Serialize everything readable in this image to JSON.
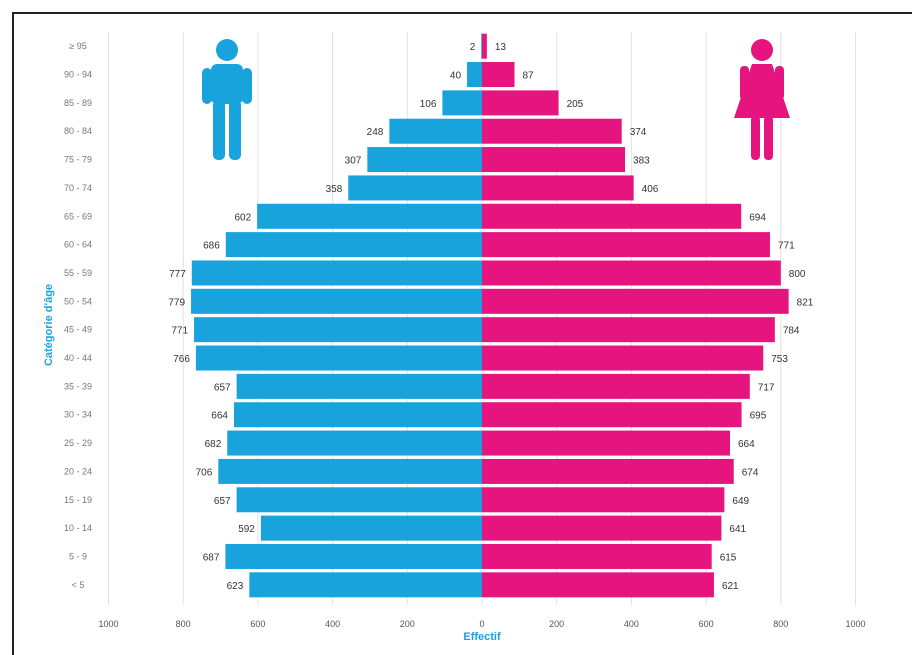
{
  "chart_data": {
    "type": "bar",
    "orientation": "horizontal-pyramid",
    "categories": [
      "< 5",
      "5 - 9",
      "10 - 14",
      "15 - 19",
      "20 - 24",
      "25 - 29",
      "30 - 34",
      "35 - 39",
      "40 - 44",
      "45 - 49",
      "50 - 54",
      "55 - 59",
      "60 - 64",
      "65 - 69",
      "70 - 74",
      "75 - 79",
      "80 - 84",
      "85 - 89",
      "90 - 94",
      "≥ 95"
    ],
    "series": [
      {
        "values": [
          623,
          687,
          592,
          657,
          706,
          682,
          664,
          657,
          766,
          771,
          779,
          777,
          686,
          602,
          358,
          307,
          248,
          106,
          40,
          2
        ],
        "color": "#19a3dc"
      },
      {
        "values": [
          621,
          615,
          641,
          649,
          674,
          664,
          695,
          717,
          753,
          784,
          821,
          800,
          771,
          694,
          406,
          383,
          374,
          205,
          87,
          13
        ],
        "color": "#e6147e"
      }
    ],
    "xlabel": "Effectif",
    "ylabel": "Catégorie d'âge",
    "xticks": [
      "1000",
      "800",
      "600",
      "400",
      "200",
      "0",
      "200",
      "400",
      "600",
      "800",
      "1000"
    ],
    "xlim": [
      -1000,
      1000
    ],
    "grid": true,
    "icons": [
      "male-figure-icon",
      "female-figure-icon"
    ]
  }
}
